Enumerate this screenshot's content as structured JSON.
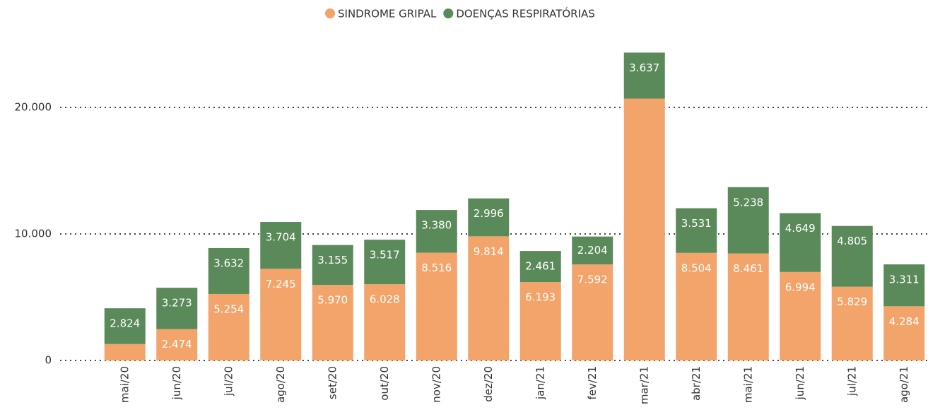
{
  "chart_data": {
    "type": "stacked_bar",
    "categories": [
      "mai/20",
      "jun/20",
      "jul/20",
      "ago/20",
      "set/20",
      "out/20",
      "nov/20",
      "dez/20",
      "jan/21",
      "fev/21",
      "mar/21",
      "abr/21",
      "mai/21",
      "jun/21",
      "jul/21",
      "ago/21"
    ],
    "series": [
      {
        "name": "SINDROME GRIPAL",
        "color": "#f2a46b",
        "values": [
          1300,
          2474,
          5254,
          7245,
          5970,
          6028,
          8516,
          9814,
          6193,
          7592,
          20700,
          8504,
          8461,
          6994,
          5829,
          4284
        ],
        "value_labels": [
          null,
          "2.474",
          "5.254",
          "7.245",
          "5.970",
          "6.028",
          "8.516",
          "9.814",
          "6.193",
          "7.592",
          null,
          "8.504",
          "8.461",
          "6.994",
          "5.829",
          "4.284"
        ]
      },
      {
        "name": "DOENÇAS RESPIRATÓRIAS",
        "color": "#5b8a5a",
        "values": [
          2824,
          3273,
          3632,
          3704,
          3155,
          3517,
          3380,
          2996,
          2461,
          2204,
          3637,
          3531,
          5238,
          4649,
          4805,
          3311
        ],
        "value_labels": [
          "2.824",
          "3.273",
          "3.632",
          "3.704",
          "3.155",
          "3.517",
          "3.380",
          "2.996",
          "2.461",
          "2.204",
          "3.637",
          "3.531",
          "5.238",
          "4.649",
          "4.805",
          "3.311"
        ]
      }
    ],
    "ylim": [
      0,
      24600
    ],
    "yticks": [
      0,
      {
        "value": 10000,
        "label": "10.000"
      },
      {
        "value": 20000,
        "label": "20.000"
      }
    ],
    "grid": true,
    "legend": "top"
  }
}
